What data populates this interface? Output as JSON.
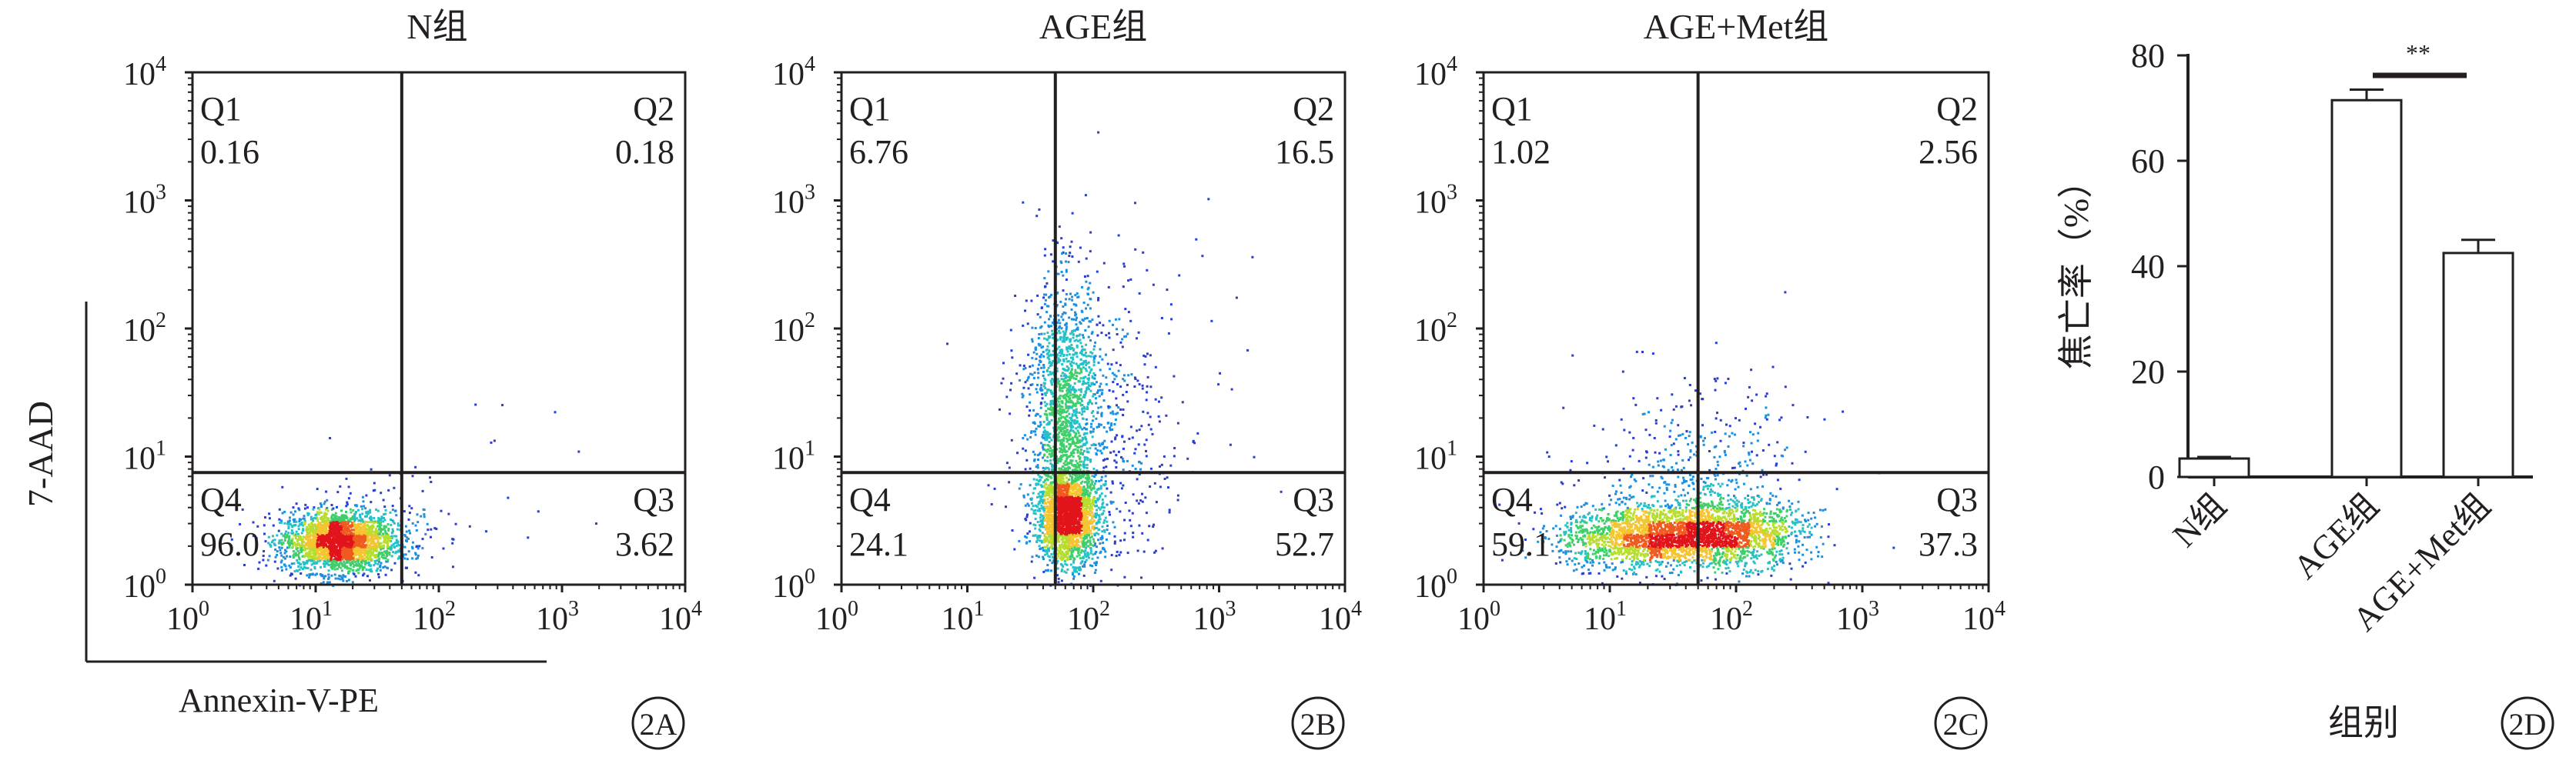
{
  "figure": {
    "y_axis_label": "7-AAD",
    "x_axis_label": "Annexin-V-PE"
  },
  "chart_data": [
    {
      "type": "scatter",
      "panel": "2A",
      "title": "N组",
      "xscale": "log",
      "yscale": "log",
      "xlim": [
        1,
        10000
      ],
      "ylim": [
        1,
        10000
      ],
      "x_ticks": [
        "10",
        "10",
        "10",
        "10",
        "10"
      ],
      "x_tick_exponents": [
        "0",
        "1",
        "2",
        "3",
        "4"
      ],
      "y_ticks": [
        "10",
        "10",
        "10",
        "10",
        "10"
      ],
      "y_tick_exponents": [
        "0",
        "1",
        "2",
        "3",
        "4"
      ],
      "gate": {
        "x": 50,
        "y": 7.5
      },
      "quadrants": [
        {
          "name": "Q1",
          "value": "0.16"
        },
        {
          "name": "Q2",
          "value": "0.18"
        },
        {
          "name": "Q3",
          "value": "3.62"
        },
        {
          "name": "Q4",
          "value": "96.0"
        }
      ],
      "populations": [
        {
          "count": 2400,
          "x_center": 15,
          "x_spread": 0.23,
          "y_center": 2.2,
          "y_spread": 0.12
        },
        {
          "count": 140,
          "x_center": 40,
          "x_spread": 0.3,
          "y_center": 3,
          "y_spread": 0.2
        },
        {
          "count": 14,
          "x_center": 150,
          "x_spread": 0.45,
          "y_center": 8,
          "y_spread": 0.35
        }
      ]
    },
    {
      "type": "scatter",
      "panel": "2B",
      "title": "AGE组",
      "xscale": "log",
      "yscale": "log",
      "xlim": [
        1,
        10000
      ],
      "ylim": [
        1,
        10000
      ],
      "x_ticks": [
        "10",
        "10",
        "10",
        "10",
        "10"
      ],
      "x_tick_exponents": [
        "0",
        "1",
        "2",
        "3",
        "4"
      ],
      "y_ticks": [
        "10",
        "10",
        "10",
        "10",
        "10"
      ],
      "y_tick_exponents": [
        "0",
        "1",
        "2",
        "3",
        "4"
      ],
      "gate": {
        "x": 50,
        "y": 7.5
      },
      "quadrants": [
        {
          "name": "Q1",
          "value": "6.76"
        },
        {
          "name": "Q2",
          "value": "16.5"
        },
        {
          "name": "Q3",
          "value": "52.7"
        },
        {
          "name": "Q4",
          "value": "24.1"
        }
      ],
      "populations": [
        {
          "count": 2000,
          "x_center": 62,
          "x_spread": 0.12,
          "y_center": 3.5,
          "y_spread": 0.18
        },
        {
          "count": 1400,
          "x_center": 58,
          "x_spread": 0.14,
          "y_center": 25,
          "y_spread": 0.5
        },
        {
          "count": 500,
          "x_center": 100,
          "x_spread": 0.3,
          "y_center": 10,
          "y_spread": 0.55
        },
        {
          "count": 90,
          "x_center": 200,
          "x_spread": 0.5,
          "y_center": 60,
          "y_spread": 0.6
        }
      ]
    },
    {
      "type": "scatter",
      "panel": "2C",
      "title": "AGE+Met组",
      "xscale": "log",
      "yscale": "log",
      "xlim": [
        1,
        10000
      ],
      "ylim": [
        1,
        10000
      ],
      "x_ticks": [
        "10",
        "10",
        "10",
        "10",
        "10"
      ],
      "x_tick_exponents": [
        "0",
        "1",
        "2",
        "3",
        "4"
      ],
      "y_ticks": [
        "10",
        "10",
        "10",
        "10",
        "10"
      ],
      "y_tick_exponents": [
        "0",
        "1",
        "2",
        "3",
        "4"
      ],
      "gate": {
        "x": 50,
        "y": 7.5
      },
      "quadrants": [
        {
          "name": "Q1",
          "value": "1.02"
        },
        {
          "name": "Q2",
          "value": "2.56"
        },
        {
          "name": "Q3",
          "value": "37.3"
        },
        {
          "name": "Q4",
          "value": "59.1"
        }
      ],
      "populations": [
        {
          "count": 1800,
          "x_center": 20,
          "x_spread": 0.35,
          "y_center": 2.4,
          "y_spread": 0.12
        },
        {
          "count": 1300,
          "x_center": 90,
          "x_spread": 0.3,
          "y_center": 2.6,
          "y_spread": 0.13
        },
        {
          "count": 400,
          "x_center": 50,
          "x_spread": 0.4,
          "y_center": 6,
          "y_spread": 0.3
        },
        {
          "count": 60,
          "x_center": 60,
          "x_spread": 0.5,
          "y_center": 20,
          "y_spread": 0.3
        }
      ]
    },
    {
      "type": "bar",
      "panel": "2D",
      "categories": [
        "N组",
        "AGE组",
        "AGE+Met组"
      ],
      "values": [
        3.5,
        71.5,
        42.5
      ],
      "errors": [
        0.3,
        2.0,
        2.5
      ],
      "xlabel": "组别",
      "ylabel": "焦亡率（%）",
      "ylim": [
        0,
        80
      ],
      "y_ticks": [
        0,
        20,
        40,
        60,
        80
      ],
      "significance": {
        "between": [
          "AGE组",
          "AGE+Met组"
        ],
        "label": "**"
      }
    }
  ]
}
